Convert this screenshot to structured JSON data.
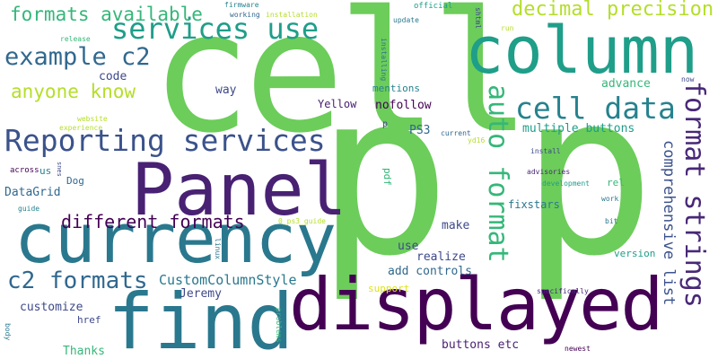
{
  "words": [
    {
      "text": "cell",
      "color": "#6ccd5a"
    },
    {
      "text": "p",
      "color": "#6ccd5a"
    },
    {
      "text": "p",
      "color": "#6ccd5a"
    },
    {
      "text": "column",
      "color": "#1f9e89"
    },
    {
      "text": "currency",
      "color": "#2a788e"
    },
    {
      "text": "find",
      "color": "#2a788e"
    },
    {
      "text": "displayed",
      "color": "#440154"
    },
    {
      "text": "Panel",
      "color": "#482173"
    },
    {
      "text": "Reporting services",
      "color": "#3b528b"
    },
    {
      "text": "services use",
      "color": "#1f9e89"
    },
    {
      "text": "formats available",
      "color": "#35b779"
    },
    {
      "text": "decimal precision",
      "color": "#b5de2b"
    },
    {
      "text": "example c2",
      "color": "#31688e"
    },
    {
      "text": "anyone know",
      "color": "#b5de2b"
    },
    {
      "text": "code",
      "color": "#3e4989"
    },
    {
      "text": "cell data",
      "color": "#26828e"
    },
    {
      "text": "format strings",
      "color": "#482878"
    },
    {
      "text": "auto format",
      "color": "#35b779"
    },
    {
      "text": "comprehensive list",
      "color": "#3b528b"
    },
    {
      "text": "c2 formats",
      "color": "#31688e"
    },
    {
      "text": "different formats",
      "color": "#440154"
    },
    {
      "text": "CustomColumnStyle",
      "color": "#2a788e"
    },
    {
      "text": "DataGrid",
      "color": "#31688e"
    },
    {
      "text": "Jeremy",
      "color": "#3e4989"
    },
    {
      "text": "customize",
      "color": "#3e4989"
    },
    {
      "text": "Thanks",
      "color": "#35b779"
    },
    {
      "text": "href",
      "color": "#3e4989"
    },
    {
      "text": "multiple buttons",
      "color": "#1f9e89"
    },
    {
      "text": "PS3",
      "color": "#31688e"
    },
    {
      "text": "mentions",
      "color": "#26828e"
    },
    {
      "text": "nofollow",
      "color": "#440154"
    },
    {
      "text": "Yellow",
      "color": "#482173"
    },
    {
      "text": "way",
      "color": "#3e4989"
    },
    {
      "text": "advance",
      "color": "#35b779"
    },
    {
      "text": "buttons etc",
      "color": "#481f70"
    },
    {
      "text": "add controls",
      "color": "#31688e"
    },
    {
      "text": "realize",
      "color": "#3e4989"
    },
    {
      "text": "make",
      "color": "#3e4989"
    },
    {
      "text": "use",
      "color": "#3e4989"
    },
    {
      "text": "fixstars",
      "color": "#2a788e"
    },
    {
      "text": "version",
      "color": "#1f9e89"
    },
    {
      "text": "rel",
      "color": "#35b779"
    },
    {
      "text": "Dog",
      "color": "#31688e"
    },
    {
      "text": "us",
      "color": "#26828e"
    },
    {
      "text": "across",
      "color": "#440154"
    },
    {
      "text": "pdf",
      "color": "#35b779"
    },
    {
      "text": "support",
      "color": "#dce319"
    },
    {
      "text": "specifically",
      "color": "#482878"
    },
    {
      "text": "newest",
      "color": "#440154"
    },
    {
      "text": "firmware",
      "color": "#26828e"
    },
    {
      "text": "working",
      "color": "#31688e"
    },
    {
      "text": "installation",
      "color": "#b5de2b"
    },
    {
      "text": "official",
      "color": "#1f9e89"
    },
    {
      "text": "update",
      "color": "#2a788e"
    },
    {
      "text": "shtml",
      "color": "#3e4989"
    },
    {
      "text": "run",
      "color": "#b5de2b"
    },
    {
      "text": "installing",
      "color": "#2a788e"
    },
    {
      "text": "release",
      "color": "#35b779"
    },
    {
      "text": "website",
      "color": "#b5de2b"
    },
    {
      "text": "experience",
      "color": "#b5de2b"
    },
    {
      "text": "current",
      "color": "#31688e"
    },
    {
      "text": "yd16",
      "color": "#b5de2b"
    },
    {
      "text": "install",
      "color": "#3e4989"
    },
    {
      "text": "advisories",
      "color": "#482878"
    },
    {
      "text": "development",
      "color": "#1f9e89"
    },
    {
      "text": "work",
      "color": "#2a788e"
    },
    {
      "text": "bit",
      "color": "#2a788e"
    },
    {
      "text": "now",
      "color": "#3e4989"
    },
    {
      "text": "0_ps3_guide",
      "color": "#b5de2b"
    },
    {
      "text": "guide",
      "color": "#26828e"
    },
    {
      "text": "linux",
      "color": "#2a788e"
    },
    {
      "text": "body",
      "color": "#2a788e"
    },
    {
      "text": "problems",
      "color": "#35b779"
    },
    {
      "text": "snes",
      "color": "#3e4989"
    },
    {
      "text": "p",
      "color": "#3e4989"
    }
  ]
}
